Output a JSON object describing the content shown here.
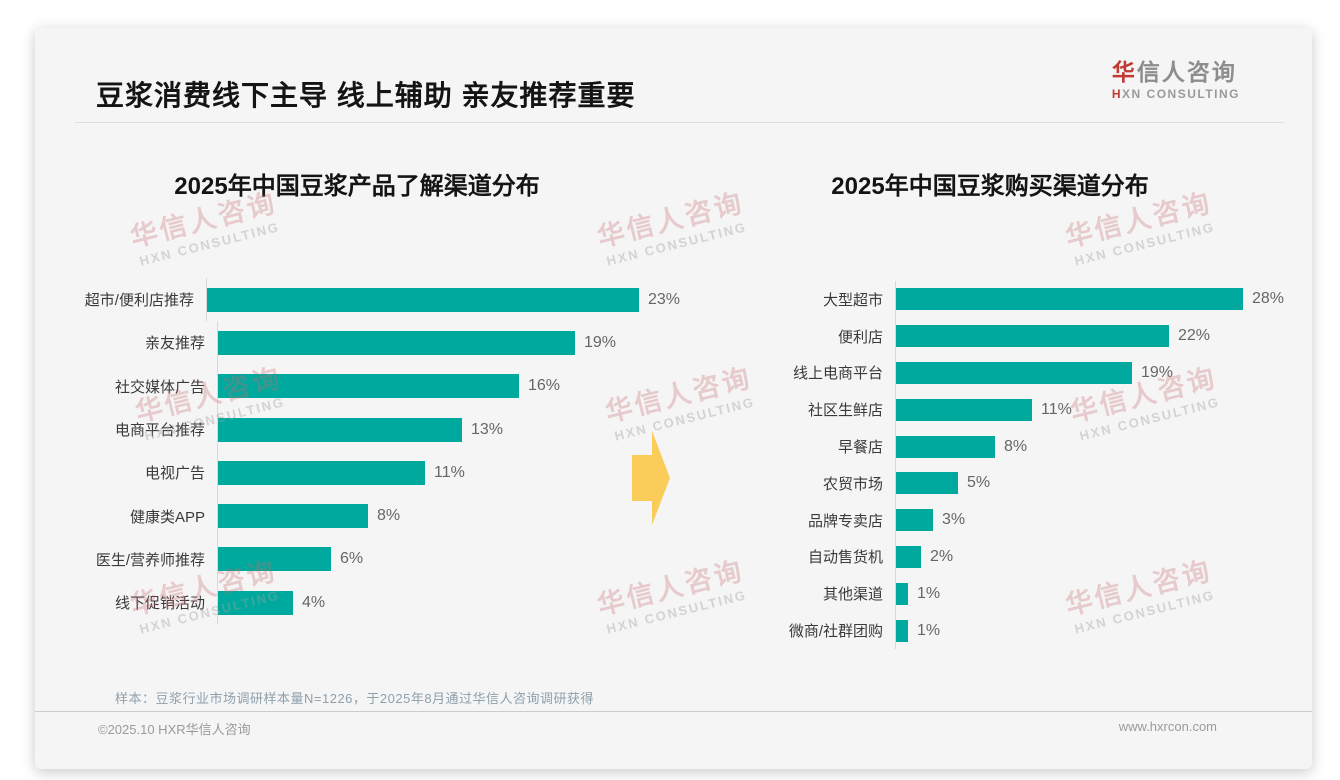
{
  "page": {
    "title": "豆浆消费线下主导 线上辅助 亲友推荐重要",
    "logo": {
      "brand_accent": "华",
      "brand_rest": "信人咨询",
      "subtitle_accent": "H",
      "subtitle_rest": "XN CONSULTING"
    },
    "watermark": {
      "line1": "华信人咨询",
      "line2": "HXN CONSULTING"
    },
    "footnote": "样本：豆浆行业市场调研样本量N=1226，于2025年8月通过华信人咨询调研获得",
    "footer_left": "©2025.10 HXR华信人咨询",
    "footer_right": "www.hxrcon.com"
  },
  "colors": {
    "bar": "#00A99D",
    "arrow": "#FACC59",
    "accent_red": "#C03A32",
    "title_text": "#141414",
    "card_background": "#F5F5F6"
  },
  "chart_data": [
    {
      "type": "bar",
      "orientation": "horizontal",
      "title": "2025年中国豆浆产品了解渠道分布",
      "categories": [
        "超市/便利店推荐",
        "亲友推荐",
        "社交媒体广告",
        "电商平台推荐",
        "电视广告",
        "健康类APP",
        "医生/营养师推荐",
        "线下促销活动"
      ],
      "values": [
        23,
        19,
        16,
        13,
        11,
        8,
        6,
        4
      ],
      "value_suffix": "%",
      "xlim": [
        0,
        25
      ],
      "grid": false,
      "legend": false,
      "data_labels": "outside-end"
    },
    {
      "type": "bar",
      "orientation": "horizontal",
      "title": "2025年中国豆浆购买渠道分布",
      "categories": [
        "大型超市",
        "便利店",
        "线上电商平台",
        "社区生鲜店",
        "早餐店",
        "农贸市场",
        "品牌专卖店",
        "自动售货机",
        "其他渠道",
        "微商/社群团购"
      ],
      "values": [
        28,
        22,
        19,
        11,
        8,
        5,
        3,
        2,
        1,
        1
      ],
      "value_suffix": "%",
      "xlim": [
        0,
        30
      ],
      "grid": false,
      "legend": false,
      "data_labels": "outside-end"
    }
  ]
}
